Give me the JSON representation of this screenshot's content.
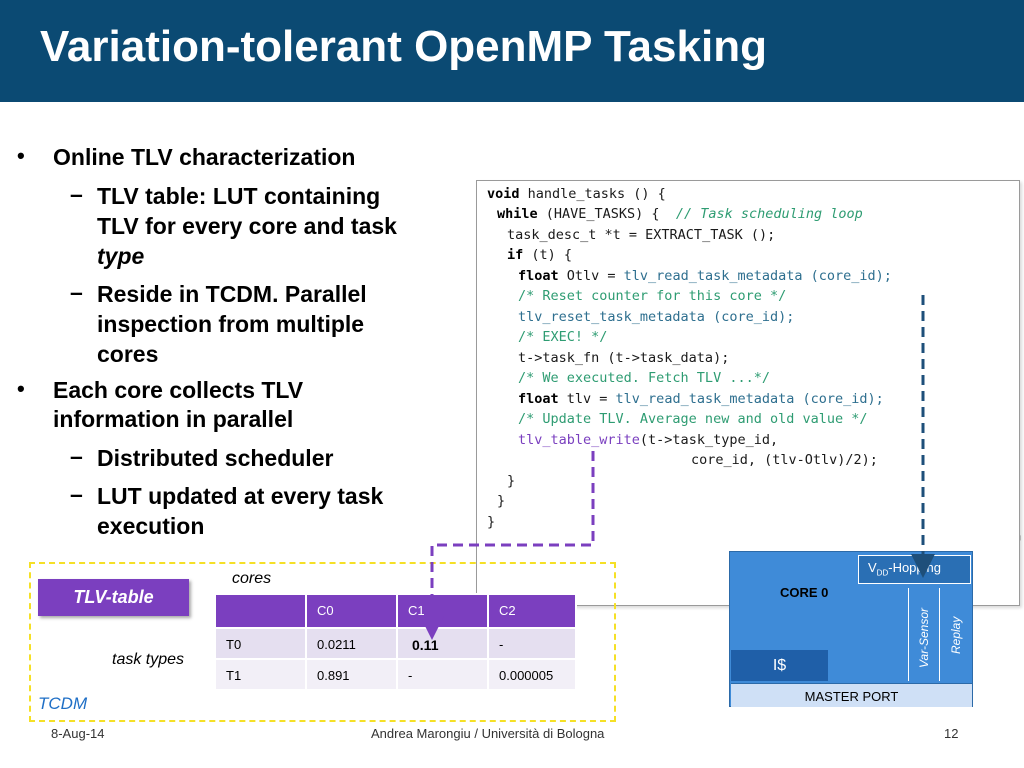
{
  "slide": {
    "title": "Variation-tolerant OpenMP Tasking"
  },
  "bullets": {
    "b1_text": "Online TLV characterization",
    "b1_sub1_line1": "TLV table: LUT containing",
    "b1_sub1_line2": "TLV for every core and task",
    "b1_sub1_line3": "type",
    "b1_sub2_line1": "Reside in TCDM. Parallel",
    "b1_sub2_line2": "inspection from multiple",
    "b1_sub2_line3": "cores",
    "b2_line1": "Each core collects TLV",
    "b2_line2": "information in parallel",
    "b2_sub1": "Distributed scheduler",
    "b2_sub2_line1": "LUT updated at every task",
    "b2_sub2_line2": "execution",
    "bullet_glyph": "•",
    "dash_glyph": "–"
  },
  "code": {
    "l1_kw": "void",
    "l1_rest": " handle_tasks () {",
    "l2_kw": "while",
    "l2_rest": " (HAVE_TASKS) {  ",
    "l2_cm": "// Task scheduling loop",
    "l3": "task_desc_t *t = EXTRACT_TASK ();",
    "l4_kw": "if",
    "l4_rest": " (t) {",
    "l5_kw": "float",
    "l5_a": " Otlv = ",
    "l5_fn": "tlv_read_task_metadata (core_id);",
    "l6": "/* Reset counter for this core */",
    "l7": "tlv_reset_task_metadata (core_id);",
    "l8": "/* EXEC! */",
    "l9": "t->task_fn (t->task_data);",
    "l10": "/* We executed. Fetch TLV ...*/",
    "l11_kw": "float",
    "l11_a": " tlv = ",
    "l11_fn": "tlv_read_task_metadata (core_id);",
    "l12": "/* Update TLV. Average new and old value */",
    "l13_fn": "tlv_table_write",
    "l13_rest": "(t->task_type_id,",
    "l14": "core_id, (tlv-Otlv)/2);",
    "l15": "}",
    "l16": "}",
    "l17": "}"
  },
  "tcdm": {
    "badge": "TLV-table",
    "cores_label": "cores",
    "tasktypes_label": "task types",
    "region_label": "TCDM",
    "header": [
      "",
      "C0",
      "C1",
      "C2"
    ],
    "rows": [
      [
        "T0",
        "0.0211",
        "0.11",
        "-"
      ],
      [
        "T1",
        "0.891",
        "-",
        "0.000005"
      ]
    ]
  },
  "core": {
    "label": "CORE 0",
    "vdd_prefix": "V",
    "vdd_sub": "DD",
    "vdd_suffix": "-Hopping",
    "var_sensor": "Var-Sensor",
    "replay": "Replay",
    "icache": "I$",
    "master_port": "MASTER PORT"
  },
  "footer": {
    "date": "8-Aug-14",
    "author": "Andrea Marongiu / Università di Bologna",
    "page": "12"
  },
  "colors": {
    "title_bg": "#0b4a73",
    "purple": "#7b3fbf",
    "core_blue": "#3f8bd8",
    "tcdm_border": "#f5e026",
    "arrow_blue": "#1e4f7a"
  }
}
